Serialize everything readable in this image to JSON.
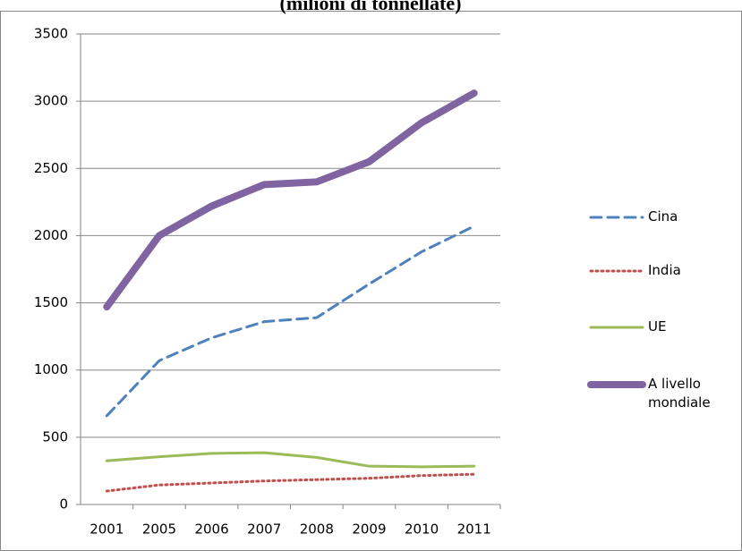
{
  "chart_data": {
    "type": "line",
    "title": "(milioni di tonnellate)",
    "categories": [
      "2001",
      "2005",
      "2006",
      "2007",
      "2008",
      "2009",
      "2010",
      "2011"
    ],
    "series": [
      {
        "name": "Cina",
        "color": "#4f81bd",
        "dash": "dashed",
        "values": [
          660,
          1070,
          1240,
          1360,
          1390,
          1640,
          1880,
          2070
        ]
      },
      {
        "name": "India",
        "color": "#c0504d",
        "dash": "dotted",
        "values": [
          100,
          145,
          160,
          175,
          185,
          195,
          215,
          225
        ]
      },
      {
        "name": "UE",
        "color": "#9bbb59",
        "dash": "solid",
        "values": [
          325,
          355,
          380,
          385,
          350,
          285,
          280,
          285
        ]
      },
      {
        "name": "A livello mondiale",
        "color": "#8064a2",
        "dash": "thick",
        "values": [
          1470,
          2000,
          2220,
          2380,
          2400,
          2550,
          2840,
          3060
        ]
      }
    ],
    "ylim": [
      0,
      3500
    ],
    "yticks": [
      0,
      500,
      1000,
      1500,
      2000,
      2500,
      3000,
      3500
    ],
    "grid": true,
    "legend": "right"
  }
}
